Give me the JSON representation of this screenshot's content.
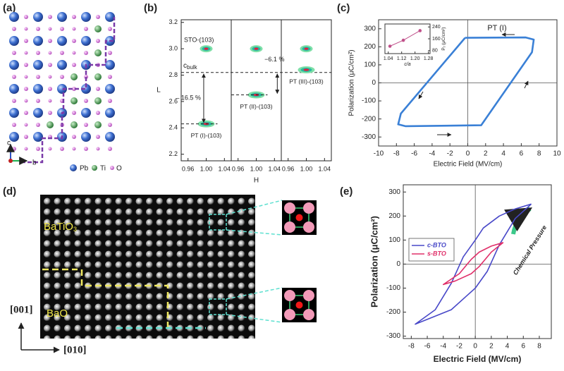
{
  "panels": {
    "a": {
      "label": "(a)",
      "axis_labels": [
        "c",
        "b"
      ],
      "legend": [
        "Pb",
        "Ti",
        "O"
      ]
    },
    "b": {
      "label": "(b)"
    },
    "c": {
      "label": "(c)"
    },
    "d": {
      "label": "(d)",
      "regions": [
        "BaTiO",
        "BaO"
      ],
      "region_subscript": "3",
      "directions": [
        "[001]",
        "[010]"
      ]
    },
    "e": {
      "label": "(e)"
    }
  },
  "chart_data": [
    {
      "type": "peak-map",
      "xlabel": "H",
      "ylabel": "L",
      "xlim": [
        0.945,
        1.055
      ],
      "xticks": [
        0.96,
        {
          "value": 1,
          "label": "1.00"
        },
        1.04
      ],
      "ylim": [
        2.15,
        3.22
      ],
      "yticks": [
        2.2,
        2.4,
        2.6,
        2.8,
        {
          "value": 3,
          "label": "3.0"
        },
        3.2
      ],
      "sto_label": "STO-(103)",
      "reference": {
        "label": "c",
        "label_sub": "bulk",
        "value": 2.82
      },
      "subplots": [
        {
          "label": "PT (I)-(103)",
          "strain": "– 16.5 %",
          "peaks_x": [
            1.0,
            1.0
          ],
          "peaks_y": [
            3.0,
            2.43
          ]
        },
        {
          "label": "PT (II)-(103)",
          "strain": "−6.1 %",
          "peaks_x": [
            1.0,
            1.0
          ],
          "peaks_y": [
            3.0,
            2.65
          ]
        },
        {
          "label": "PT (III)-(103)",
          "peaks_x": [
            1.0,
            1.0
          ],
          "peaks_y": [
            3.0,
            2.84
          ]
        }
      ]
    },
    {
      "type": "hysteresis",
      "xlabel": "Electric Field (MV/cm)",
      "ylabel": "Polarization (μC/cm²)",
      "xlim": [
        -10,
        10
      ],
      "xticks": [
        -10,
        -8,
        -6,
        -4,
        -2,
        0,
        2,
        4,
        6,
        8,
        10
      ],
      "ylim": [
        -350,
        350
      ],
      "yticks": [
        -300,
        -200,
        -100,
        0,
        100,
        200,
        300
      ],
      "annotation": "PT (I)",
      "series": [
        {
          "color": "#3a80d6",
          "x": [
            -0.3,
            6.5,
            7.4,
            7.2,
            1.5,
            -7.0,
            -7.8,
            -7.5,
            -0.3
          ],
          "y": [
            250,
            252,
            240,
            170,
            -235,
            -240,
            -230,
            -170,
            250
          ]
        }
      ],
      "inset": {
        "type": "line",
        "xlabel": "c/a",
        "ylabel": "P",
        "ylabel_sub": "r",
        "ylabel_unit": " (μC/cm²)",
        "color": "#c0508a",
        "x": [
          1.05,
          1.13,
          1.23
        ],
        "y": [
          110,
          150,
          215
        ],
        "xlim": [
          1.02,
          1.29
        ],
        "xticks": [
          1.04,
          1.12,
          {
            "value": 1.2,
            "label": "1.20"
          },
          1.28
        ],
        "ylim": [
          60,
          260
        ],
        "yticks": [
          80,
          160,
          240
        ]
      }
    },
    {
      "type": "hysteresis",
      "xlabel": "Electric Field (MV/cm)",
      "ylabel": "Polarization (μC/cm²)",
      "xlim": [
        -9,
        9.5
      ],
      "xticks": [
        -8,
        -6,
        -4,
        -2,
        0,
        2,
        4,
        6,
        8
      ],
      "ylim": [
        -310,
        330
      ],
      "yticks": [
        -300,
        -200,
        -100,
        0,
        100,
        200,
        300
      ],
      "annotation": "Chemical Pressure",
      "legend": "upper-left",
      "series": [
        {
          "name": "c-BTO",
          "color": "#4848c8",
          "x": [
            7.0,
            5.0,
            3.0,
            1.0,
            0.0,
            -1.5,
            -3.0,
            -5.0,
            -7.5,
            -6.0,
            -3.0,
            -1.0,
            0.0,
            1.5,
            3.0,
            5.0,
            7.0
          ],
          "y": [
            250,
            230,
            200,
            150,
            100,
            30,
            -80,
            -190,
            -250,
            -230,
            -190,
            -130,
            -100,
            -30,
            80,
            190,
            250
          ]
        },
        {
          "name": "s-BTO",
          "color": "#e0306a",
          "x": [
            3.5,
            2.0,
            0.5,
            -0.5,
            -2.0,
            -4.0,
            -2.5,
            -0.5,
            0.5,
            2.0,
            3.5
          ],
          "y": [
            90,
            75,
            50,
            20,
            -40,
            -85,
            -70,
            -40,
            -10,
            50,
            90
          ]
        }
      ]
    }
  ]
}
